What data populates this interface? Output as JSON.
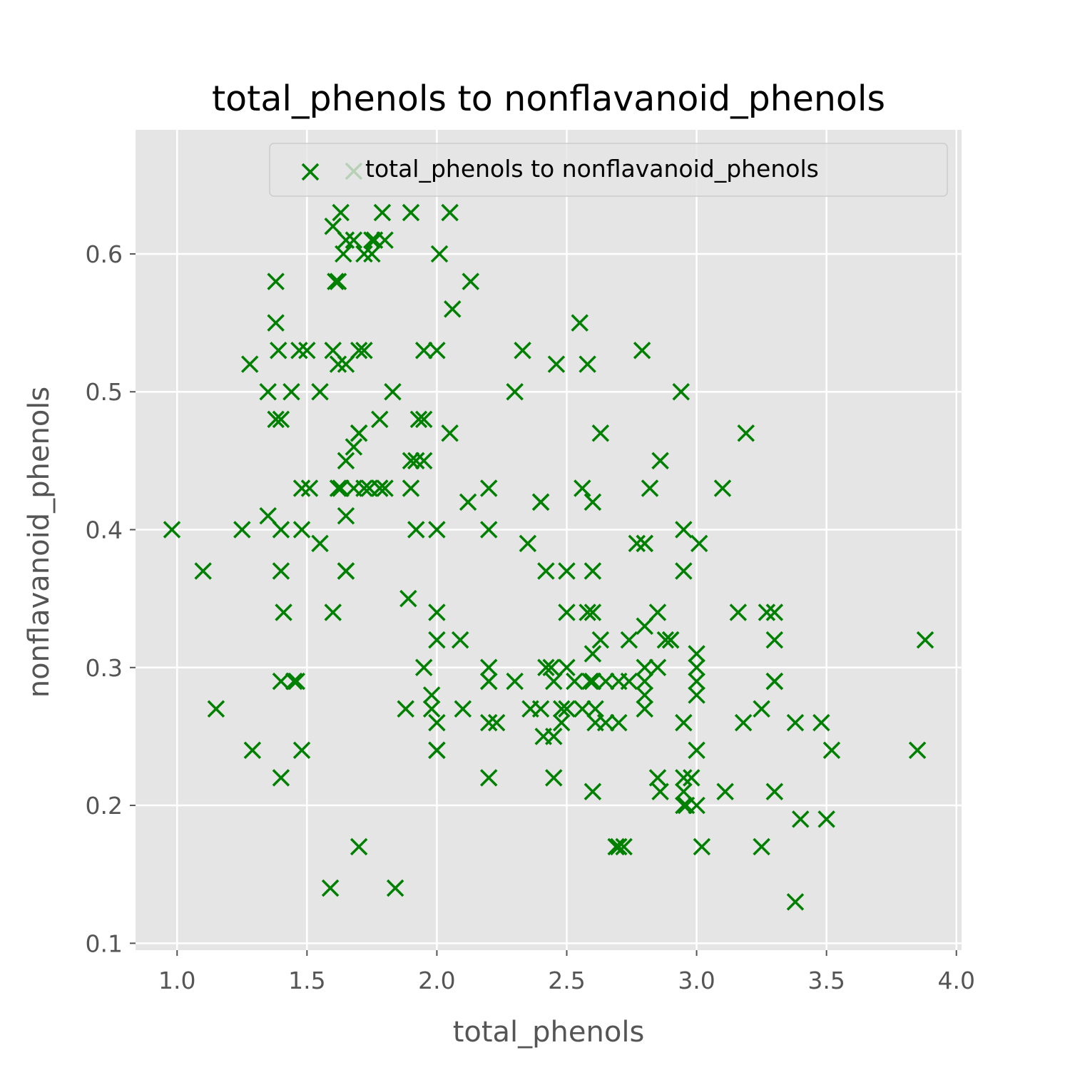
{
  "chart_data": {
    "type": "scatter",
    "title": "total_phenols to nonflavanoid_phenols",
    "xlabel": "total_phenols",
    "ylabel": "nonflavanoid_phenols",
    "xlim": [
      0.84,
      4.02
    ],
    "ylim": [
      0.095,
      0.69
    ],
    "xticks": [
      "1.0",
      "1.5",
      "2.0",
      "2.5",
      "3.0",
      "3.5",
      "4.0"
    ],
    "yticks": [
      "0.1",
      "0.2",
      "0.3",
      "0.4",
      "0.5",
      "0.6"
    ],
    "xtick_values": [
      1.0,
      1.5,
      2.0,
      2.5,
      3.0,
      3.5,
      4.0
    ],
    "ytick_values": [
      0.1,
      0.2,
      0.3,
      0.4,
      0.5,
      0.6
    ],
    "grid": true,
    "legend_position": "top-right",
    "series": [
      {
        "name": "total_phenols to nonflavanoid_phenols",
        "color": "#008000",
        "marker": "x",
        "points": [
          [
            2.8,
            0.28
          ],
          [
            2.65,
            0.26
          ],
          [
            2.8,
            0.3
          ],
          [
            3.85,
            0.24
          ],
          [
            2.8,
            0.39
          ],
          [
            3.27,
            0.34
          ],
          [
            2.5,
            0.3
          ],
          [
            2.6,
            0.31
          ],
          [
            2.8,
            0.29
          ],
          [
            2.98,
            0.22
          ],
          [
            2.95,
            0.22
          ],
          [
            2.2,
            0.26
          ],
          [
            2.6,
            0.29
          ],
          [
            3.1,
            0.43
          ],
          [
            3.3,
            0.29
          ],
          [
            2.85,
            0.3
          ],
          [
            2.8,
            0.33
          ],
          [
            2.95,
            0.4
          ],
          [
            3.3,
            0.32
          ],
          [
            2.7,
            0.17
          ],
          [
            3.0,
            0.24
          ],
          [
            2.41,
            0.25
          ],
          [
            2.61,
            0.27
          ],
          [
            2.48,
            0.26
          ],
          [
            2.53,
            0.29
          ],
          [
            2.63,
            0.32
          ],
          [
            2.85,
            0.34
          ],
          [
            2.4,
            0.27
          ],
          [
            2.95,
            0.26
          ],
          [
            2.65,
            0.29
          ],
          [
            3.0,
            0.29
          ],
          [
            2.86,
            0.45
          ],
          [
            2.42,
            0.3
          ],
          [
            2.95,
            0.21
          ],
          [
            2.35,
            0.39
          ],
          [
            2.7,
            0.26
          ],
          [
            2.6,
            0.34
          ],
          [
            2.45,
            0.29
          ],
          [
            3.0,
            0.3
          ],
          [
            2.86,
            0.21
          ],
          [
            2.42,
            0.37
          ],
          [
            2.74,
            0.29
          ],
          [
            2.95,
            0.2
          ],
          [
            3.5,
            0.19
          ],
          [
            3.4,
            0.19
          ],
          [
            2.88,
            0.32
          ],
          [
            3.25,
            0.27
          ],
          [
            3.3,
            0.21
          ],
          [
            2.96,
            0.2
          ],
          [
            3.18,
            0.26
          ],
          [
            2.85,
            0.22
          ],
          [
            2.9,
            0.32
          ],
          [
            2.58,
            0.34
          ],
          [
            3.0,
            0.2
          ],
          [
            2.95,
            0.37
          ],
          [
            3.02,
            0.17
          ],
          [
            2.72,
            0.17
          ],
          [
            2.45,
            0.25
          ],
          [
            2.61,
            0.26
          ],
          [
            2.45,
            0.22
          ],
          [
            2.69,
            0.17
          ],
          [
            3.3,
            0.29
          ],
          [
            2.6,
            0.21
          ],
          [
            3.25,
            0.17
          ],
          [
            3.0,
            0.28
          ],
          [
            2.74,
            0.32
          ],
          [
            2.2,
            0.43
          ],
          [
            1.95,
            0.3
          ],
          [
            2.0,
            0.26
          ],
          [
            3.38,
            0.26
          ],
          [
            2.4,
            0.42
          ],
          [
            1.65,
            0.37
          ],
          [
            1.98,
            0.27
          ],
          [
            2.0,
            0.24
          ],
          [
            1.62,
            0.58
          ],
          [
            1.48,
            0.24
          ],
          [
            1.78,
            0.43
          ],
          [
            1.72,
            0.43
          ],
          [
            2.05,
            0.47
          ],
          [
            2.0,
            0.24
          ],
          [
            2.8,
            0.27
          ],
          [
            2.4,
            0.42
          ],
          [
            1.45,
            0.29
          ],
          [
            1.95,
            0.48
          ],
          [
            1.7,
            0.47
          ],
          [
            2.2,
            0.4
          ],
          [
            2.5,
            0.27
          ],
          [
            1.7,
            0.53
          ],
          [
            1.38,
            0.58
          ],
          [
            1.72,
            0.53
          ],
          [
            1.78,
            0.48
          ],
          [
            1.9,
            0.45
          ],
          [
            1.6,
            0.62
          ],
          [
            1.65,
            0.61
          ],
          [
            1.68,
            0.61
          ],
          [
            2.01,
            0.6
          ],
          [
            1.65,
            0.41
          ],
          [
            1.1,
            0.37
          ],
          [
            1.63,
            0.43
          ],
          [
            1.7,
            0.47
          ],
          [
            1.65,
            0.45
          ],
          [
            2.5,
            0.34
          ],
          [
            3.52,
            0.24
          ],
          [
            3.48,
            0.26
          ],
          [
            1.95,
            0.45
          ],
          [
            1.4,
            0.29
          ],
          [
            2.2,
            0.3
          ],
          [
            2.8,
            0.39
          ],
          [
            2.56,
            0.43
          ],
          [
            2.48,
            0.27
          ],
          [
            2.56,
            0.27
          ],
          [
            1.38,
            0.55
          ],
          [
            2.2,
            0.29
          ],
          [
            1.46,
            0.29
          ],
          [
            1.6,
            0.34
          ],
          [
            2.2,
            0.29
          ],
          [
            1.15,
            0.27
          ],
          [
            2.13,
            0.58
          ],
          [
            1.62,
            0.43
          ],
          [
            1.9,
            0.43
          ],
          [
            2.0,
            0.32
          ],
          [
            2.36,
            0.27
          ],
          [
            2.12,
            0.42
          ],
          [
            2.6,
            0.42
          ],
          [
            1.4,
            0.48
          ],
          [
            1.35,
            0.41
          ],
          [
            1.28,
            0.52
          ],
          [
            1.95,
            0.53
          ],
          [
            1.55,
            0.39
          ],
          [
            1.6,
            0.53
          ],
          [
            1.41,
            0.34
          ],
          [
            1.65,
            0.52
          ],
          [
            1.68,
            0.46
          ],
          [
            1.51,
            0.43
          ],
          [
            1.48,
            0.4
          ],
          [
            1.4,
            0.22
          ],
          [
            2.0,
            0.4
          ],
          [
            1.38,
            0.48
          ],
          [
            1.65,
            0.37
          ],
          [
            1.35,
            0.5
          ],
          [
            2.0,
            0.53
          ],
          [
            1.83,
            0.5
          ],
          [
            1.59,
            0.14
          ],
          [
            1.25,
            0.4
          ],
          [
            1.84,
            0.14
          ],
          [
            1.4,
            0.4
          ],
          [
            1.39,
            0.53
          ],
          [
            1.63,
            0.63
          ],
          [
            1.61,
            0.58
          ],
          [
            1.7,
            0.17
          ],
          [
            1.72,
            0.6
          ],
          [
            1.79,
            0.63
          ],
          [
            1.76,
            0.61
          ],
          [
            1.47,
            0.53
          ],
          [
            1.75,
            0.6
          ],
          [
            0.98,
            0.4
          ],
          [
            2.3,
            0.5
          ],
          [
            2.33,
            0.53
          ],
          [
            2.46,
            0.52
          ],
          [
            2.58,
            0.52
          ],
          [
            2.55,
            0.55
          ],
          [
            2.63,
            0.47
          ],
          [
            2.79,
            0.53
          ],
          [
            2.94,
            0.5
          ],
          [
            3.19,
            0.47
          ],
          [
            1.68,
            0.43
          ],
          [
            1.74,
            0.43
          ],
          [
            1.78,
            0.43
          ],
          [
            1.8,
            0.61
          ],
          [
            1.5,
            0.53
          ],
          [
            1.48,
            0.43
          ],
          [
            1.29,
            0.24
          ],
          [
            1.4,
            0.37
          ],
          [
            2.06,
            0.56
          ],
          [
            2.05,
            0.63
          ],
          [
            1.9,
            0.63
          ],
          [
            1.68,
            0.66
          ],
          [
            1.62,
            0.52
          ],
          [
            1.55,
            0.5
          ],
          [
            1.44,
            0.5
          ],
          [
            1.64,
            0.6
          ],
          [
            1.88,
            0.27
          ],
          [
            1.92,
            0.45
          ],
          [
            1.92,
            0.4
          ],
          [
            1.89,
            0.35
          ],
          [
            1.98,
            0.28
          ],
          [
            2.0,
            0.34
          ],
          [
            1.93,
            0.48
          ],
          [
            1.8,
            0.43
          ],
          [
            1.75,
            0.61
          ],
          [
            2.09,
            0.32
          ],
          [
            2.1,
            0.27
          ],
          [
            2.2,
            0.22
          ],
          [
            2.23,
            0.26
          ],
          [
            2.3,
            0.29
          ],
          [
            2.44,
            0.3
          ],
          [
            2.5,
            0.37
          ],
          [
            2.59,
            0.29
          ],
          [
            2.6,
            0.37
          ],
          [
            2.7,
            0.29
          ],
          [
            2.77,
            0.39
          ],
          [
            2.82,
            0.43
          ],
          [
            2.9,
            0.32
          ],
          [
            3.0,
            0.31
          ],
          [
            3.01,
            0.39
          ],
          [
            3.11,
            0.21
          ],
          [
            3.16,
            0.34
          ],
          [
            3.3,
            0.34
          ],
          [
            3.38,
            0.13
          ],
          [
            3.88,
            0.32
          ]
        ]
      }
    ]
  }
}
